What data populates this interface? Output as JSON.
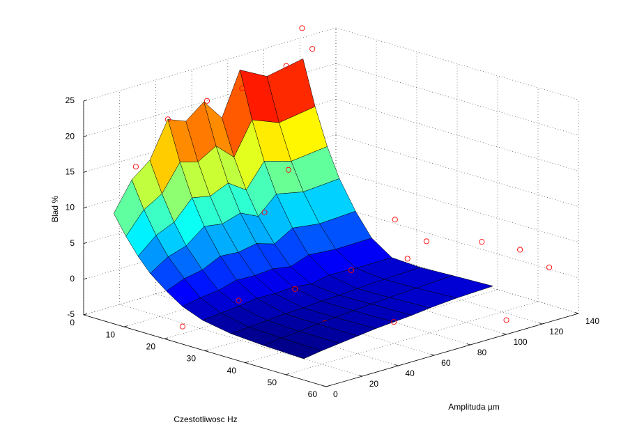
{
  "chart_data": {
    "type": "surface3d",
    "zlabel": "Blad %",
    "xlabel": "Czestotliwosc Hz",
    "ylabel": "Amplituda µm",
    "xlim": [
      0,
      60
    ],
    "xticks": [
      0,
      10,
      20,
      30,
      40,
      50,
      60
    ],
    "ylim": [
      0,
      140
    ],
    "yticks": [
      0,
      20,
      40,
      60,
      80,
      100,
      120,
      140
    ],
    "zlim": [
      -5,
      25
    ],
    "zticks": [
      -5,
      0,
      5,
      10,
      15,
      20,
      25
    ],
    "grid": true,
    "colormap": "jet",
    "edge_color": "#000000",
    "x": [
      3,
      6,
      9,
      12,
      16,
      20,
      25,
      32,
      40,
      50
    ],
    "y": [
      10,
      20,
      30,
      40,
      50,
      60,
      70,
      80,
      95,
      115
    ],
    "z": [
      [
        9,
        13,
        15,
        20,
        19,
        21,
        18,
        24,
        22,
        23
      ],
      [
        6.3,
        9.3,
        10.8,
        14.5,
        13.8,
        15.3,
        13,
        17.5,
        16,
        16.8
      ],
      [
        4,
        6.2,
        7.3,
        10,
        9.5,
        10.6,
        8.9,
        12.2,
        11.1,
        11.7
      ],
      [
        2.1,
        3.7,
        4.5,
        6.5,
        6.1,
        6.9,
        5.7,
        8.1,
        7.3,
        7.7
      ],
      [
        0.3,
        1.3,
        1.8,
        3,
        2.8,
        3.3,
        2.5,
        4,
        3.5,
        3.8
      ],
      [
        -1.2,
        -0.7,
        -0.4,
        0.3,
        0.2,
        0.4,
        0,
        0.9,
        0.6,
        0.7
      ],
      [
        -2.3,
        -2,
        -1.8,
        -1.4,
        -1.5,
        -1.3,
        -1.6,
        -1.1,
        -1.2,
        -1.2
      ],
      [
        -3,
        -2.8,
        -2.6,
        -2.4,
        -2.3,
        -2.1,
        -2,
        -1.8,
        -1.6,
        -1.4
      ],
      [
        -3.3,
        -3,
        -2.8,
        -2.5,
        -2.3,
        -2.1,
        -1.9,
        -1.7,
        -1.5,
        -1.2
      ],
      [
        -3.5,
        -3.1,
        -2.8,
        -2.5,
        -2.2,
        -2,
        -1.8,
        -1.5,
        -1.2,
        -1
      ]
    ],
    "scatter": {
      "color": "#ff0000",
      "x": [
        4,
        3,
        6,
        8,
        10,
        12,
        5,
        15,
        18,
        25,
        30,
        22,
        35,
        40,
        28,
        45,
        50,
        55,
        60,
        50,
        20,
        33,
        42,
        38
      ],
      "y": [
        20,
        40,
        55,
        70,
        90,
        100,
        110,
        80,
        60,
        30,
        50,
        20,
        70,
        90,
        110,
        120,
        130,
        135,
        100,
        60,
        10,
        20,
        40,
        105
      ],
      "z": [
        15,
        20,
        22,
        23,
        25,
        27,
        28,
        12,
        8,
        -1,
        0,
        -3,
        2,
        3,
        5,
        4,
        3,
        1,
        -3,
        -2,
        -4,
        -3,
        -2,
        4
      ]
    }
  }
}
